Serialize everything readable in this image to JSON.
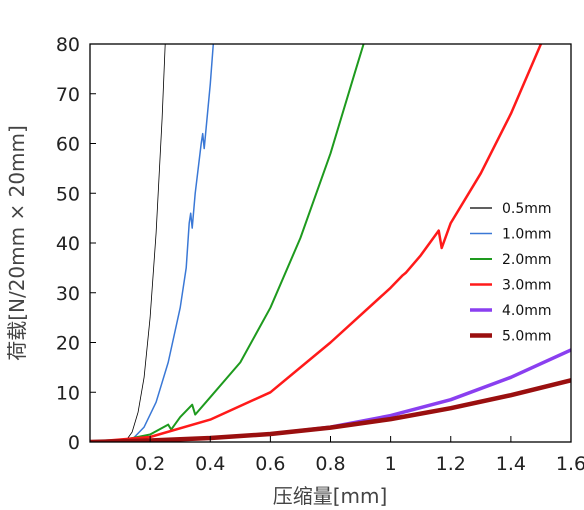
{
  "chart_data": {
    "type": "line",
    "title": "",
    "xlabel": "压缩量[mm]",
    "ylabel": "荷载[N/20mm × 20mm]",
    "xlim": [
      0,
      1.6
    ],
    "ylim": [
      0,
      80
    ],
    "x_ticks": [
      "0.2",
      "0.4",
      "0.6",
      "0.8",
      "1",
      "1.2",
      "1.4",
      "1.6"
    ],
    "y_ticks": [
      "0",
      "10",
      "20",
      "30",
      "40",
      "50",
      "60",
      "70",
      "80"
    ],
    "grid": false,
    "legend_position": "right",
    "series": [
      {
        "name": "0.5mm",
        "color": "#000000",
        "width": 0.8,
        "points": [
          [
            0,
            0
          ],
          [
            0.12,
            0.3
          ],
          [
            0.14,
            2
          ],
          [
            0.16,
            6
          ],
          [
            0.18,
            13
          ],
          [
            0.2,
            25
          ],
          [
            0.22,
            42
          ],
          [
            0.24,
            65
          ],
          [
            0.25,
            80
          ]
        ]
      },
      {
        "name": "1.0mm",
        "color": "#3a78d6",
        "width": 1.5,
        "points": [
          [
            0,
            0
          ],
          [
            0.14,
            0.5
          ],
          [
            0.18,
            3
          ],
          [
            0.22,
            8
          ],
          [
            0.26,
            16
          ],
          [
            0.3,
            27
          ],
          [
            0.32,
            35
          ],
          [
            0.33,
            44
          ],
          [
            0.335,
            46
          ],
          [
            0.34,
            43
          ],
          [
            0.35,
            50
          ],
          [
            0.37,
            60
          ],
          [
            0.375,
            62
          ],
          [
            0.38,
            59
          ],
          [
            0.4,
            72
          ],
          [
            0.41,
            80
          ]
        ]
      },
      {
        "name": "2.0mm",
        "color": "#1e9a1e",
        "width": 2,
        "points": [
          [
            0,
            0
          ],
          [
            0.1,
            0.3
          ],
          [
            0.2,
            1.5
          ],
          [
            0.26,
            3.5
          ],
          [
            0.27,
            2.5
          ],
          [
            0.3,
            5
          ],
          [
            0.34,
            7.5
          ],
          [
            0.35,
            5.5
          ],
          [
            0.4,
            9
          ],
          [
            0.5,
            16
          ],
          [
            0.6,
            27
          ],
          [
            0.7,
            41
          ],
          [
            0.8,
            58
          ],
          [
            0.88,
            74
          ],
          [
            0.91,
            80
          ]
        ]
      },
      {
        "name": "3.0mm",
        "color": "#ff1a1a",
        "width": 2.5,
        "points": [
          [
            0,
            0
          ],
          [
            0.2,
            1
          ],
          [
            0.4,
            4.5
          ],
          [
            0.6,
            10
          ],
          [
            0.8,
            20
          ],
          [
            1.0,
            31
          ],
          [
            1.04,
            33.5
          ],
          [
            1.05,
            34
          ],
          [
            1.1,
            37.5
          ],
          [
            1.16,
            42.5
          ],
          [
            1.17,
            39
          ],
          [
            1.2,
            44
          ],
          [
            1.3,
            54
          ],
          [
            1.4,
            66
          ],
          [
            1.5,
            80
          ]
        ]
      },
      {
        "name": "4.0mm",
        "color": "#8a3ff0",
        "width": 3.5,
        "points": [
          [
            0,
            0
          ],
          [
            0.2,
            0.3
          ],
          [
            0.4,
            0.8
          ],
          [
            0.6,
            1.6
          ],
          [
            0.8,
            3
          ],
          [
            1.0,
            5.3
          ],
          [
            1.2,
            8.5
          ],
          [
            1.4,
            13
          ],
          [
            1.6,
            18.5
          ]
        ]
      },
      {
        "name": "5.0mm",
        "color": "#9a0f0f",
        "width": 4.5,
        "points": [
          [
            0,
            0
          ],
          [
            0.2,
            0.3
          ],
          [
            0.4,
            0.8
          ],
          [
            0.6,
            1.6
          ],
          [
            0.8,
            2.9
          ],
          [
            1.0,
            4.6
          ],
          [
            1.2,
            6.8
          ],
          [
            1.4,
            9.4
          ],
          [
            1.6,
            12.4
          ]
        ]
      }
    ]
  }
}
